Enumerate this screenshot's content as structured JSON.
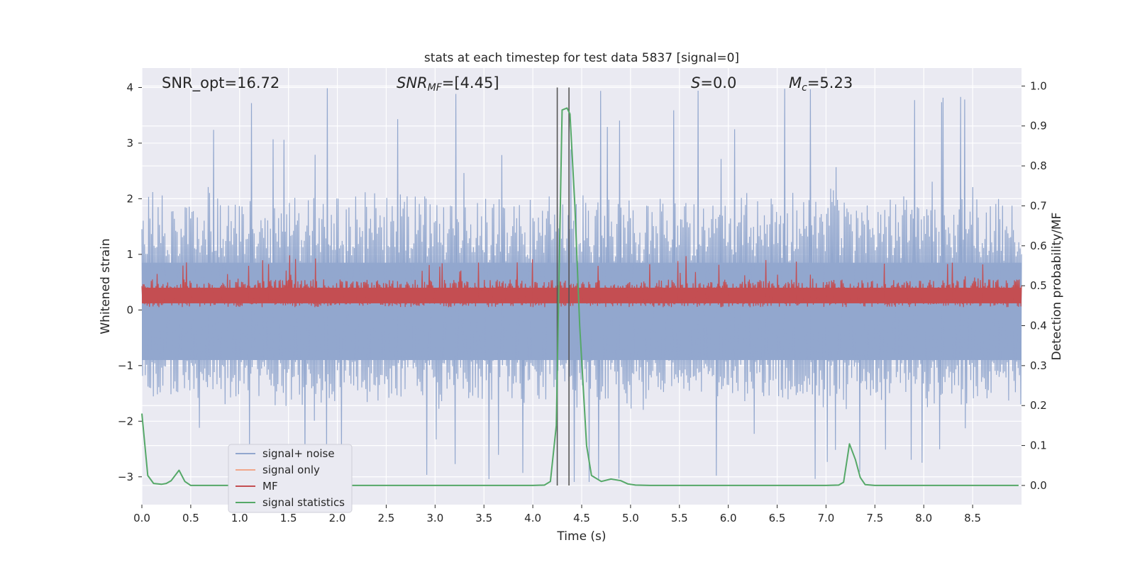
{
  "chart_data": {
    "type": "line",
    "title": "stats at each timestep for test data 5837 [signal=0]",
    "xlabel": "Time (s)",
    "ylabel": "Whitened strain",
    "y2label": "Detection probability/MF",
    "xlim": [
      0.0,
      9.0
    ],
    "ylim": [
      -3.5,
      4.35
    ],
    "y2lim": [
      -0.048,
      1.045
    ],
    "xticks": [
      0.0,
      0.5,
      1.0,
      1.5,
      2.0,
      2.5,
      3.0,
      3.5,
      4.0,
      4.5,
      5.0,
      5.5,
      6.0,
      6.5,
      7.0,
      7.5,
      8.0,
      8.5
    ],
    "xtick_labels": [
      "0.0",
      "0.5",
      "1.0",
      "1.5",
      "2.0",
      "2.5",
      "3.0",
      "3.5",
      "4.0",
      "4.5",
      "5.0",
      "5.5",
      "6.0",
      "6.5",
      "7.0",
      "7.5",
      "8.0",
      "8.5"
    ],
    "yticks": [
      -3,
      -2,
      -1,
      0,
      1,
      2,
      3,
      4
    ],
    "ytick_labels": [
      "−3",
      "−2",
      "−1",
      "0",
      "1",
      "2",
      "3",
      "4"
    ],
    "y2ticks": [
      0.0,
      0.1,
      0.2,
      0.3,
      0.4,
      0.5,
      0.6,
      0.7,
      0.8,
      0.9,
      1.0
    ],
    "y2tick_labels": [
      "0.0",
      "0.1",
      "0.2",
      "0.3",
      "0.4",
      "0.5",
      "0.6",
      "0.7",
      "0.8",
      "0.9",
      "1.0"
    ],
    "grid": true,
    "legend_position": "lower-left",
    "annotations": {
      "snr_opt": "SNR_opt=16.72",
      "snr_mf_main": "SNR",
      "snr_mf_sub": "MF",
      "snr_mf_value": "=[4.45]",
      "s_main": "S",
      "s_value": "=0.0",
      "mc_main": "M",
      "mc_sub": "c",
      "mc_value": "=5.23"
    },
    "vlines": [
      4.25,
      4.37
    ],
    "series": [
      {
        "name": "signal+ noise",
        "color": "#92a7ce",
        "axis": "left",
        "style": "noise",
        "envelope_upper": 2.0,
        "envelope_lower": -1.6,
        "peak_max": 4.0,
        "peak_min": -3.2
      },
      {
        "name": "signal only",
        "color": "#f1a78a",
        "axis": "left",
        "style": "hidden"
      },
      {
        "name": "MF",
        "color": "#c44e52",
        "axis": "left",
        "style": "noise",
        "base": 0.05,
        "typical_max": 0.55,
        "peak_max": 1.0
      },
      {
        "name": "signal statistics",
        "color": "#55a868",
        "axis": "right",
        "style": "line",
        "x": [
          0.0,
          0.06,
          0.12,
          0.2,
          0.25,
          0.3,
          0.38,
          0.44,
          0.5,
          1.0,
          2.0,
          3.0,
          4.0,
          4.12,
          4.18,
          4.24,
          4.3,
          4.35,
          4.38,
          4.43,
          4.48,
          4.55,
          4.6,
          4.7,
          4.8,
          4.9,
          4.97,
          5.05,
          5.2,
          6.0,
          7.0,
          7.13,
          7.18,
          7.24,
          7.3,
          7.35,
          7.4,
          7.5,
          8.0,
          8.97
        ],
        "y": [
          0.18,
          0.025,
          0.005,
          0.003,
          0.005,
          0.012,
          0.038,
          0.01,
          0.0,
          0.0,
          0.0,
          0.0,
          0.0,
          0.001,
          0.01,
          0.15,
          0.94,
          0.945,
          0.93,
          0.7,
          0.4,
          0.1,
          0.025,
          0.01,
          0.016,
          0.012,
          0.004,
          0.001,
          0.0,
          0.0,
          0.0,
          0.001,
          0.008,
          0.104,
          0.065,
          0.02,
          0.002,
          0.0,
          0.0,
          0.0
        ]
      }
    ]
  }
}
